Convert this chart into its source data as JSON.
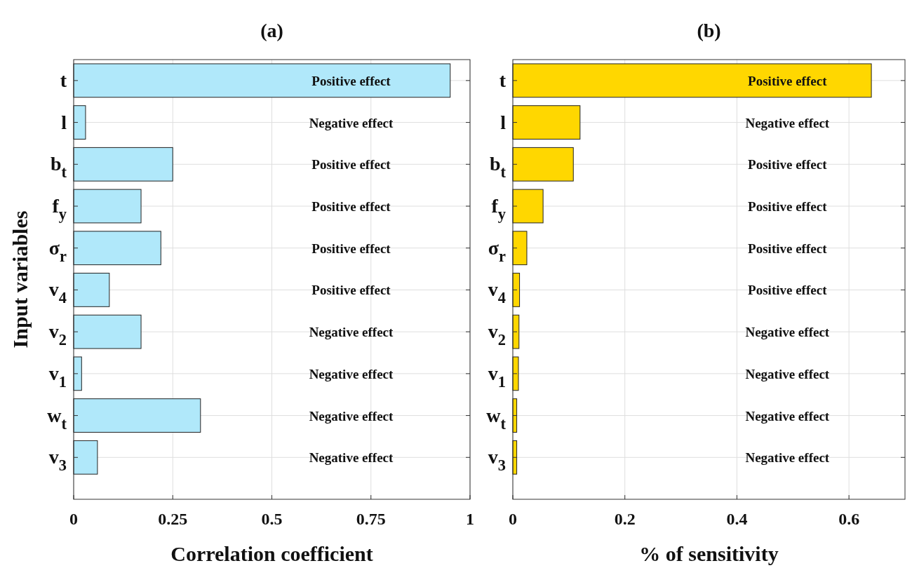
{
  "chart_data": [
    {
      "type": "bar",
      "orientation": "horizontal",
      "title": "(a)",
      "xlabel": "Correlation coefficient",
      "ylabel": "Input variables",
      "categories": [
        "t",
        "l",
        "b$_{t}$",
        "f$_{y}$",
        "σ$_{r}$",
        "v$_{4}$",
        "v$_{2}$",
        "v$_{1}$",
        "w$_{t}$",
        "v$_{3}$"
      ],
      "values": [
        0.95,
        0.03,
        0.25,
        0.17,
        0.22,
        0.09,
        0.17,
        0.02,
        0.32,
        0.06
      ],
      "color": "#b0e8fa",
      "xlim": [
        0,
        1
      ],
      "xticks": [
        0,
        0.25,
        0.5,
        0.75,
        1
      ],
      "grid": true,
      "annotations": [
        "Positive effect",
        "Negative effect",
        "Positive effect",
        "Positive effect",
        "Positive effect",
        "Positive effect",
        "Negative effect",
        "Negative effect",
        "Negative effect",
        "Negative effect"
      ]
    },
    {
      "type": "bar",
      "orientation": "horizontal",
      "title": "(b)",
      "xlabel": "% of sensitivity",
      "categories": [
        "t",
        "l",
        "b$_{t}$",
        "f$_{y}$",
        "σ$_{r}$",
        "v$_{4}$",
        "v$_{2}$",
        "v$_{1}$",
        "w$_{t}$",
        "v$_{3}$"
      ],
      "values": [
        0.64,
        0.12,
        0.108,
        0.054,
        0.025,
        0.012,
        0.011,
        0.01,
        0.007,
        0.007
      ],
      "color": "#ffd700",
      "xlim": [
        0,
        0.7
      ],
      "xticks": [
        0,
        0.2,
        0.4,
        0.6
      ],
      "grid": true,
      "annotations": [
        "Positive effect",
        "Negative effect",
        "Positive effect",
        "Positive effect",
        "Positive effect",
        "Positive effect",
        "Negative effect",
        "Negative effect",
        "Negative effect",
        "Negative effect"
      ]
    }
  ]
}
